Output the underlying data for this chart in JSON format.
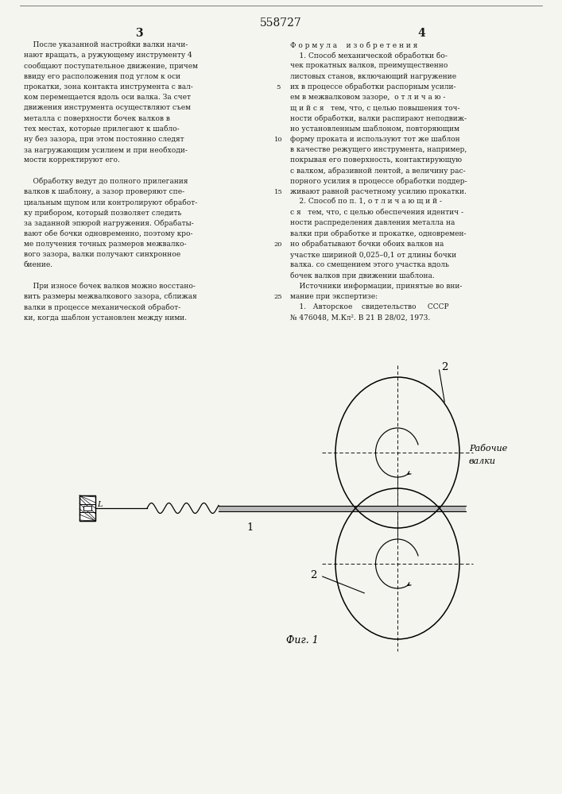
{
  "patent_number": "558727",
  "page_left": "3",
  "page_right": "4",
  "bg_color": "#f5f5f0",
  "text_color": "#1a1a1a",
  "left_column_text": [
    "    После указанной настройки валки начи-",
    "нают вращать, а ружующему инструменту 4",
    "сообщают поступательное движение, причем",
    "ввиду его расположения под углом к оси",
    "прокатки, зона контакта инструмента с вал-",
    "ком перемещается вдоль оси валка. За счет",
    "движения инструмента осуществляют съем",
    "металла с поверхности бочек валков в",
    "тех местах, которые прилегают к шабло-",
    "ну без зазора, при этом постоянно следят",
    "за нагружающим усилием и при необходи-",
    "мости корректируют его.",
    "",
    "    Обработку ведут до полного прилегания",
    "валков к шаблону, а зазор проверяют спе-",
    "циальным щупом или контролируют обработ-",
    "ку прибором, который позволяет следить",
    "за заданной эпюрой нагружения. Обрабаты-",
    "вают обе бочки одновременно, поэтому кро-",
    "ме получения точных размеров межвалко-",
    "вого зазора, валки получают синхронное",
    "биение.",
    "",
    "    При износе бочек валков можно восстано-",
    "вить размеры межвалкового зазора, сближая",
    "валки в процессе механической обработ-",
    "ки, когда шаблон установлен между ними."
  ],
  "right_column_text": [
    "Ф о р м у л а    и з о б р е т е н и я",
    "    1. Способ механической обработки бо-",
    "чек прокатных валков, преимущественно",
    "листовых станов, включающий нагружение",
    "их в процессе обработки распорным усили-",
    "ем в межвалковом зазоре,  о т л и ч а ю -",
    "щ и й с я   тем, что, с целью повышения точ-",
    "ности обработки, валки распирают неподвиж-",
    "но установленным шаблоном, повторяющим",
    "форму проката и используют тот же шаблон",
    "в качестве режущего инструмента, например,",
    "покрывая его поверхность, контактирующую",
    "с валком, абразивной лентой, а величину рас-",
    "порного усилия в процессе обработки поддер-",
    "живают равной расчетному усилию прокатки.",
    "    2. Способ по п. 1, о т л и ч а ю щ и й -",
    "с я   тем, что, с целью обеспечения идентич -",
    "ности распределения давления металла на",
    "валки при обработке и прокатке, одновремен-",
    "но обрабатывают бочки обоих валков на",
    "участке шириной 0,025–0,1 от длины бочки",
    "валка. со смещением этого участка вдоль",
    "бочек валков при движении шаблона.",
    "    Источники информации, принятые во вни-",
    "мание при экспертизе:",
    "    1.   Авторское    свидетельство     СССР",
    "№ 476048, М.Кл². В 21 В 28/02, 1973."
  ],
  "fig_label": "Фиг. 1",
  "label_1": "1",
  "label_2": "2",
  "label_rabochie": "Рабочие",
  "label_valki": "валки"
}
